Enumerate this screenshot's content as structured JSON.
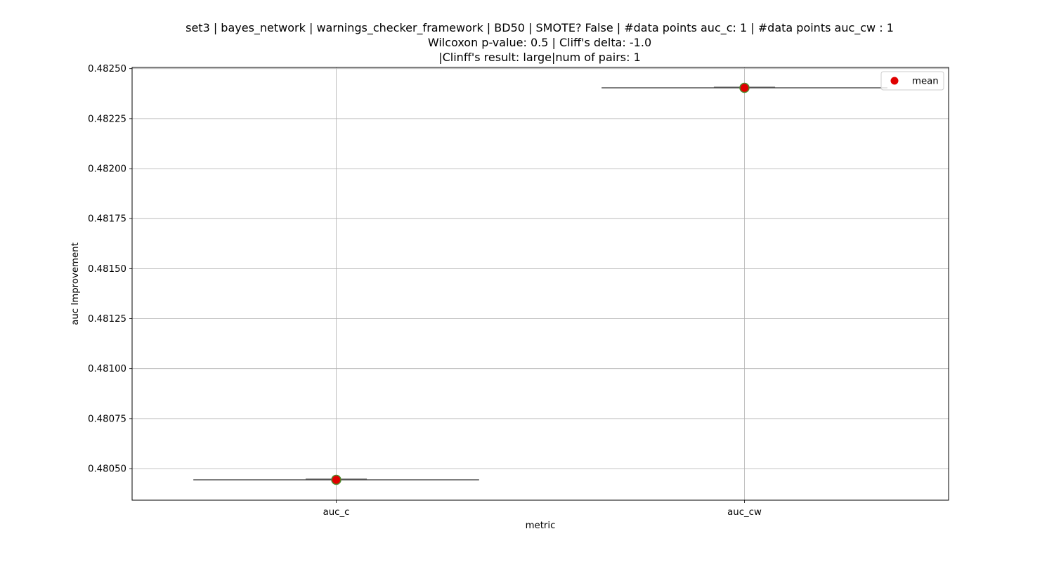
{
  "chart_data": {
    "type": "box",
    "title_lines": [
      "set3 | bayes_network | warnings_checker_framework | BD50 | SMOTE? False | #data points auc_c: 1 | #data points auc_cw : 1",
      "Wilcoxon p-value: 0.5 | Cliff's delta: -1.0",
      "|Clinff's result: large|num of pairs: 1"
    ],
    "xlabel": "metric",
    "ylabel": "auc Improvement",
    "categories": [
      "auc_c",
      "auc_cw"
    ],
    "values": [
      0.480444,
      0.482404
    ],
    "means": [
      0.480444,
      0.482404
    ],
    "ylim": [
      0.480342,
      0.482506
    ],
    "yticks": [
      0.4805,
      0.48075,
      0.481,
      0.48125,
      0.4815,
      0.48175,
      0.482,
      0.48225,
      0.4825
    ],
    "ytick_labels": [
      "0.48050",
      "0.48075",
      "0.48100",
      "0.48125",
      "0.48150",
      "0.48175",
      "0.48200",
      "0.48225",
      "0.48250"
    ],
    "grid": true,
    "legend": {
      "position": "top-right",
      "entries": [
        "mean"
      ]
    },
    "colors": {
      "mean_marker": "#e00000",
      "mean_edge": "#4d8a2e",
      "box_line": "#555555",
      "grid": "#b0b0b0"
    }
  }
}
